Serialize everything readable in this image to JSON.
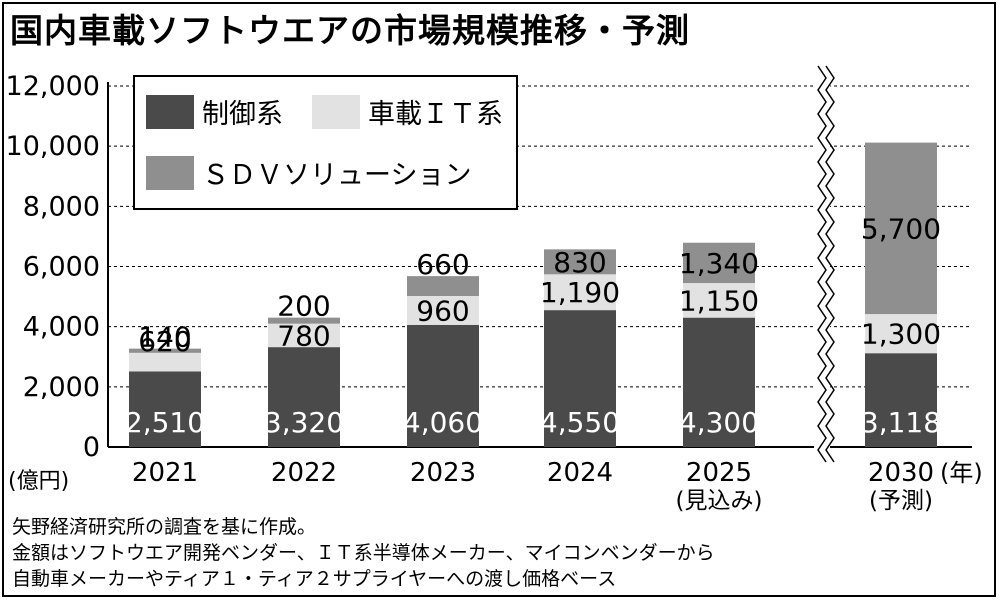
{
  "title": "国内車載ソフトウエアの市場規模推移・予測",
  "unit_label": "(億円)",
  "year_suffix": "(年)",
  "notes": [
    "矢野経済研究所の調査を基に作成。",
    "金額はソフトウエア開発ベンダー、ＩＴ系半導体メーカー、マイコンベンダーから",
    "自動車メーカーやティア１・ティア２サプライヤーへの渡し価格ベース"
  ],
  "colors": {
    "control": "#4a4a4a",
    "it": "#e2e2e2",
    "sdv": "#8f8f8f",
    "grid": "#000000"
  },
  "chart_data": {
    "type": "bar",
    "stacked": true,
    "categories": [
      "2021",
      "2022",
      "2023",
      "2024",
      "2025",
      "2030"
    ],
    "category_sublabels": [
      "",
      "",
      "",
      "",
      "(見込み)",
      "(予測)"
    ],
    "series": [
      {
        "name": "制御系",
        "values": [
          2510,
          3320,
          4060,
          4550,
          4300,
          3118
        ],
        "labels": [
          "2,510",
          "3,320",
          "4,060",
          "4,550",
          "4,300",
          "3,118"
        ]
      },
      {
        "name": "車載ＩＴ系",
        "values": [
          620,
          780,
          960,
          1190,
          1150,
          1300
        ],
        "labels": [
          "620",
          "780",
          "960",
          "1,190",
          "1,150",
          "1,300"
        ]
      },
      {
        "name": "ＳＤＶソリューション",
        "values": [
          140,
          200,
          660,
          830,
          1340,
          5700
        ],
        "labels": [
          "140",
          "200",
          "660",
          "830",
          "1,340",
          "5,700"
        ]
      }
    ],
    "ylim": [
      0,
      12000
    ],
    "yticks": [
      0,
      2000,
      4000,
      6000,
      8000,
      10000,
      12000
    ],
    "ytick_labels": [
      "0",
      "2,000",
      "4,000",
      "6,000",
      "8,000",
      "10,000",
      "12,000"
    ],
    "grid": "dashed horizontal",
    "legend_position": "top-left",
    "axis_break": "between 2025 and 2030"
  }
}
